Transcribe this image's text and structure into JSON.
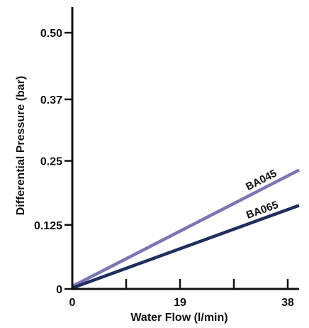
{
  "chart_data": {
    "type": "line",
    "title": "",
    "xlabel": "Water Flow (l/min)",
    "ylabel": "Differential Pressure (bar)",
    "xlim": [
      0,
      40
    ],
    "ylim": [
      0,
      0.55
    ],
    "x_ticks": [
      0,
      19,
      38
    ],
    "x_tick_labels": [
      "0",
      "19",
      "38"
    ],
    "x_minor_ticks": [
      9.5,
      28.5
    ],
    "y_ticks": [
      0,
      0.125,
      0.25,
      0.37,
      0.5
    ],
    "y_tick_labels": [
      "0",
      "0.125",
      "0.25",
      "0.37",
      "0.50"
    ],
    "grid": false,
    "legend": "none",
    "series": [
      {
        "name": "BA045",
        "x": [
          0,
          40
        ],
        "y": [
          0.005,
          0.232
        ],
        "color": "#7b75b3"
      },
      {
        "name": "BA065",
        "x": [
          0,
          40
        ],
        "y": [
          0.002,
          0.163
        ],
        "color": "#1f2f5c"
      }
    ],
    "axis_color": "#111111"
  }
}
